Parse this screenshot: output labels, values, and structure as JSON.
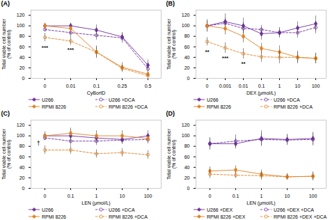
{
  "chart_data": [
    {
      "type": "line",
      "title": "(A)",
      "xlabel": "CyBortD",
      "ylabel": "Total viable cell number\n(% of control)",
      "categories": [
        "0",
        "0.01",
        "0.1",
        "0.25",
        "0.5"
      ],
      "ylim": [
        0,
        130
      ],
      "yticks": [
        0,
        20,
        40,
        60,
        80,
        100,
        120
      ],
      "legend": "bottom",
      "series": [
        {
          "name": "U266",
          "color": "#7030a0",
          "line_style": "solid",
          "marker": "diamond",
          "values": [
            100,
            100,
            92,
            79,
            25
          ],
          "errors": [
            5,
            5,
            10,
            8,
            10
          ]
        },
        {
          "name": "U266 +DCA",
          "color": "#7030a0",
          "line_style": "dashed",
          "marker": "circle",
          "values": [
            93,
            87,
            82,
            77,
            18
          ],
          "errors": [
            4,
            8,
            9,
            10,
            8
          ]
        },
        {
          "name": "RPMI 8226",
          "color": "#e08020",
          "line_style": "solid",
          "marker": "diamond",
          "values": [
            100,
            95,
            50,
            21,
            8
          ],
          "errors": [
            5,
            10,
            12,
            9,
            4
          ]
        },
        {
          "name": "RPMI 8226 +DCA",
          "color": "#e08020",
          "line_style": "dashed",
          "marker": "circle",
          "values": [
            78,
            71,
            50,
            19,
            5
          ],
          "errors": [
            8,
            8,
            10,
            6,
            3
          ]
        }
      ],
      "annotations": [
        {
          "text": "***",
          "x": "0",
          "y": 63
        },
        {
          "text": "***",
          "x": "0.01",
          "y": 58
        }
      ]
    },
    {
      "type": "line",
      "title": "(B)",
      "xlabel": "DEX (μmol/L)",
      "ylabel": "Total viable cell number\n(% of control)",
      "categories": [
        "0",
        "0.001",
        "0.01",
        "0.1",
        "1",
        "10",
        "100"
      ],
      "ylim": [
        0,
        130
      ],
      "yticks": [
        0,
        20,
        40,
        60,
        80,
        100,
        120
      ],
      "legend": "bottom",
      "series": [
        {
          "name": "U266",
          "color": "#7030a0",
          "line_style": "solid",
          "marker": "diamond",
          "values": [
            100,
            108,
            100,
            85,
            87,
            96,
            104
          ],
          "errors": [
            12,
            15,
            15,
            12,
            10,
            12,
            15
          ]
        },
        {
          "name": "U266 +DCA",
          "color": "#7030a0",
          "line_style": "dashed",
          "marker": "circle",
          "values": [
            100,
            105,
            95,
            93,
            87,
            87,
            97
          ],
          "errors": [
            8,
            10,
            12,
            8,
            8,
            10,
            12
          ]
        },
        {
          "name": "RPMI 8226",
          "color": "#e08020",
          "line_style": "solid",
          "marker": "diamond",
          "values": [
            100,
            95,
            80,
            57,
            50,
            40,
            38
          ],
          "errors": [
            10,
            12,
            12,
            10,
            12,
            12,
            10
          ]
        },
        {
          "name": "RPMI 8226 +DCA",
          "color": "#e08020",
          "line_style": "dashed",
          "marker": "circle",
          "values": [
            70,
            58,
            47,
            41,
            40,
            40,
            38
          ],
          "errors": [
            8,
            10,
            10,
            10,
            12,
            10,
            10
          ]
        }
      ],
      "annotations": [
        {
          "text": "**",
          "x": "0",
          "y": 55
        },
        {
          "text": "***",
          "x": "0.001",
          "y": 43
        },
        {
          "text": "**",
          "x": "0.01",
          "y": 32
        }
      ]
    },
    {
      "type": "line",
      "title": "(C)",
      "xlabel": "LEN (μmol/L)",
      "ylabel": "Total viable cell number\n(% of control)",
      "categories": [
        "0",
        "0.1",
        "1",
        "10",
        "100"
      ],
      "ylim": [
        0,
        130
      ],
      "yticks": [
        0,
        20,
        40,
        60,
        80,
        100,
        120
      ],
      "legend": "bottom",
      "series": [
        {
          "name": "U266",
          "color": "#7030a0",
          "line_style": "solid",
          "marker": "diamond",
          "values": [
            100,
            100,
            96,
            93,
            100
          ],
          "errors": [
            5,
            12,
            8,
            8,
            10
          ]
        },
        {
          "name": "U266 +DCA",
          "color": "#7030a0",
          "line_style": "dashed",
          "marker": "circle",
          "values": [
            96,
            90,
            90,
            92,
            93
          ],
          "errors": [
            5,
            8,
            8,
            8,
            8
          ]
        },
        {
          "name": "RPMI 8226",
          "color": "#e08020",
          "line_style": "solid",
          "marker": "diamond",
          "values": [
            100,
            105,
            100,
            100,
            95
          ],
          "errors": [
            8,
            10,
            10,
            10,
            8
          ]
        },
        {
          "name": "RPMI 8226 +DCA",
          "color": "#e08020",
          "line_style": "dashed",
          "marker": "circle",
          "values": [
            73,
            73,
            66,
            68,
            64
          ],
          "errors": [
            8,
            8,
            8,
            8,
            8
          ]
        }
      ],
      "annotations": [
        {
          "text": "†",
          "x": "0",
          "y": 86,
          "align": "left"
        }
      ]
    },
    {
      "type": "line",
      "title": "(D)",
      "xlabel": "LEN (μmol/L)",
      "ylabel": "Total viable cell number\n(% of control)",
      "categories": [
        "0",
        "0.1",
        "1",
        "10",
        "100"
      ],
      "ylim": [
        0,
        130
      ],
      "yticks": [
        0,
        20,
        40,
        60,
        80,
        100,
        120
      ],
      "legend": "bottom",
      "series": [
        {
          "name": "U266 +DEX",
          "color": "#7030a0",
          "line_style": "solid",
          "marker": "diamond",
          "values": [
            85,
            85,
            95,
            93,
            95
          ],
          "errors": [
            12,
            10,
            15,
            10,
            12
          ]
        },
        {
          "name": "U266 +DEX +DCA",
          "color": "#7030a0",
          "line_style": "dashed",
          "marker": "circle",
          "values": [
            85,
            90,
            93,
            92,
            93
          ],
          "errors": [
            10,
            12,
            12,
            10,
            12
          ]
        },
        {
          "name": "RPMI 8226 +DEX",
          "color": "#e08020",
          "line_style": "solid",
          "marker": "diamond",
          "values": [
            33,
            35,
            27,
            22,
            23
          ],
          "errors": [
            8,
            8,
            8,
            6,
            8
          ]
        },
        {
          "name": "RPMI 8226 +DEX +DCA",
          "color": "#e08020",
          "line_style": "dashed",
          "marker": "circle",
          "values": [
            27,
            25,
            24,
            22,
            23
          ],
          "errors": [
            8,
            6,
            8,
            6,
            8
          ]
        }
      ],
      "annotations": []
    }
  ]
}
